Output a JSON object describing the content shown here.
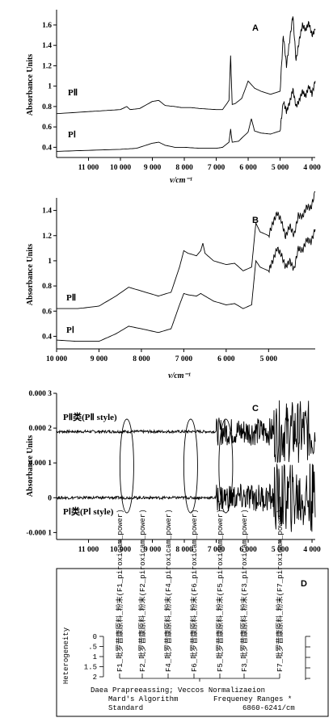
{
  "chart_data": [
    {
      "type": "line",
      "panel": "A",
      "ylabel": "Absorbance Units",
      "xlabel": "ν/cm⁻¹",
      "xlim": [
        12000,
        3900
      ],
      "ylim": [
        0.3,
        1.75
      ],
      "xticks": [
        11000,
        10000,
        9000,
        8000,
        7000,
        6000,
        5000,
        4000
      ],
      "xtick_labels": [
        "11 000",
        "10 000",
        "9 000",
        "8 000",
        "7 000",
        "6 000",
        "5 000",
        "4 000"
      ],
      "yticks": [
        0.4,
        0.6,
        0.8,
        1,
        1.2,
        1.4,
        1.6
      ],
      "ytick_labels": [
        "0.4",
        "0.6",
        "0.8",
        "1",
        "1.2",
        "1.4",
        "1.6"
      ],
      "series": [
        {
          "name": "PⅡ",
          "x": [
            12000,
            11000,
            10500,
            10000,
            9800,
            9700,
            9400,
            9000,
            8800,
            8600,
            8300,
            8100,
            7800,
            7500,
            7000,
            6800,
            6600,
            6550,
            6500,
            6400,
            6200,
            6000,
            5800,
            5600,
            5300,
            5000,
            4900,
            4800,
            4700,
            4600,
            4500,
            4400,
            4300,
            4200,
            4100,
            4000,
            3900
          ],
          "y": [
            0.73,
            0.75,
            0.76,
            0.77,
            0.8,
            0.77,
            0.78,
            0.85,
            0.86,
            0.81,
            0.8,
            0.79,
            0.79,
            0.78,
            0.77,
            0.77,
            0.86,
            1.3,
            0.82,
            0.83,
            0.88,
            1.05,
            0.98,
            0.95,
            0.92,
            0.95,
            1.5,
            1.2,
            1.45,
            1.7,
            1.25,
            1.45,
            1.6,
            1.55,
            1.62,
            1.5,
            1.55
          ]
        },
        {
          "name": "PⅠ",
          "x": [
            12000,
            11000,
            10000,
            9500,
            9000,
            8800,
            8600,
            8300,
            8000,
            7500,
            7000,
            6800,
            6600,
            6550,
            6500,
            6300,
            6000,
            5900,
            5800,
            5600,
            5300,
            5000,
            4900,
            4800,
            4700,
            4600,
            4500,
            4400,
            4300,
            4200,
            4100,
            4000,
            3900
          ],
          "y": [
            0.36,
            0.37,
            0.38,
            0.39,
            0.44,
            0.45,
            0.42,
            0.4,
            0.4,
            0.39,
            0.39,
            0.4,
            0.45,
            0.58,
            0.45,
            0.46,
            0.55,
            0.68,
            0.56,
            0.54,
            0.53,
            0.56,
            0.85,
            0.75,
            0.84,
            0.97,
            0.8,
            0.86,
            0.95,
            0.9,
            1.0,
            0.92,
            1.05
          ]
        }
      ]
    },
    {
      "type": "line",
      "panel": "B",
      "ylabel": "Absorbance Units",
      "xlabel": "ν/cm⁻¹",
      "xlim": [
        10000,
        3900
      ],
      "ylim": [
        0.3,
        1.5
      ],
      "xticks": [
        10000,
        9000,
        8000,
        7000,
        6000,
        5000
      ],
      "xtick_labels": [
        "10 000",
        "9 000",
        "8 000",
        "7 000",
        "6 000",
        "5 000"
      ],
      "yticks": [
        0.4,
        0.6,
        0.8,
        1,
        1.2,
        1.4
      ],
      "ytick_labels": [
        "0.4",
        "0.6",
        "0.8",
        "1",
        "1.2",
        "1.4"
      ],
      "series": [
        {
          "name": "PⅡ",
          "x": [
            10000,
            9500,
            9000,
            8600,
            8300,
            8000,
            7600,
            7300,
            7100,
            7000,
            6900,
            6700,
            6600,
            6550,
            6500,
            6300,
            6000,
            5800,
            5600,
            5400,
            5300,
            5200,
            5000,
            4900,
            4800,
            4700,
            4600,
            4500,
            4400,
            4300,
            4200,
            4100,
            4000,
            3900
          ],
          "y": [
            0.62,
            0.62,
            0.64,
            0.72,
            0.79,
            0.76,
            0.72,
            0.75,
            0.95,
            1.08,
            1.06,
            1.04,
            1.08,
            1.14,
            1.06,
            1.0,
            0.97,
            0.98,
            0.92,
            0.95,
            1.3,
            1.23,
            1.2,
            1.3,
            1.38,
            1.32,
            1.19,
            1.28,
            1.2,
            1.36,
            1.35,
            1.43,
            1.42,
            1.55
          ]
        },
        {
          "name": "PⅠ",
          "x": [
            10000,
            9500,
            9000,
            8600,
            8300,
            8000,
            7600,
            7300,
            7100,
            7000,
            6900,
            6700,
            6600,
            6500,
            6300,
            6000,
            5800,
            5600,
            5400,
            5300,
            5200,
            5000,
            4900,
            4800,
            4700,
            4600,
            4500,
            4400,
            4300,
            4200,
            4100,
            4000,
            3900
          ],
          "y": [
            0.37,
            0.36,
            0.36,
            0.42,
            0.48,
            0.46,
            0.43,
            0.46,
            0.65,
            0.74,
            0.73,
            0.72,
            0.74,
            0.72,
            0.68,
            0.65,
            0.66,
            0.62,
            0.65,
            1.0,
            0.95,
            0.92,
            1.0,
            1.1,
            1.05,
            0.95,
            1.0,
            0.93,
            1.1,
            1.08,
            1.17,
            1.15,
            1.25
          ]
        }
      ]
    },
    {
      "type": "line",
      "panel": "C",
      "ylabel": "Absorbance Units",
      "xlim": [
        12000,
        3900
      ],
      "ylim": [
        -0.00012,
        0.0003
      ],
      "xticks": [
        11000,
        10000,
        9000,
        8000,
        7000,
        6000,
        5000,
        4000
      ],
      "xtick_labels": [
        "11 000",
        "10 000",
        "9 000",
        "8 000",
        "7 000",
        "6 000",
        "5 000",
        "4 000"
      ],
      "yticks": [
        -0.0001,
        0,
        0.0001,
        0.0002,
        0.0003
      ],
      "ytick_labels": [
        "-0.000 1",
        "0",
        "0.000 1",
        "0.000 2",
        "0.000 3"
      ],
      "series": [
        {
          "name": "PⅡ类(PⅡ style)",
          "baseline": 0.00019,
          "noise_start": 7000,
          "noise_amp": 4e-05,
          "high_noise_start": 5200,
          "high_noise_amp": 9e-05
        },
        {
          "name": "PⅠ类(PⅠ style)",
          "baseline": 0.0,
          "noise_start": 7000,
          "noise_amp": 4e-05,
          "high_noise_start": 5200,
          "high_noise_amp": 0.0001
        }
      ],
      "ellipses_at_x": [
        9800,
        7800,
        6700
      ],
      "panel_labels": {
        "top": "PⅡ类(PⅡ style)",
        "bottom": "PⅠ类(PⅠ style)"
      }
    }
  ],
  "panel_letters": {
    "a": "A",
    "b": "B",
    "c": "C",
    "d": "D"
  },
  "panel_a": {
    "pii_label": "PⅡ",
    "pi_label": "PⅠ"
  },
  "panel_b": {
    "pii_label": "PⅡ",
    "pi_label": "PⅠ"
  },
  "panel_d": {
    "ylabel": "Heterogeneity",
    "yticks": [
      "0",
      ".5",
      "1",
      "1.5",
      "2"
    ],
    "leaves": [
      "F1_吡罗昔康原料_粉末(F1_piroxicam_power)",
      "F2_吡罗昔康原料_粉末(F2_piroxicam_power)",
      "F4_吡罗昔康原料_粉末(F4_piroxicam_power)",
      "F6_吡罗昔康原料_粉末(F6_piroxicam_power)",
      "F5_吡罗昔康原料_粉末(F5_piroxicam_power)",
      "F3_吡罗昔康原料_粉末(F3_piroxicam_power)",
      "F7_吡罗昔康原料_粉末(F7_piroxicam_power)"
    ],
    "footer": {
      "line1": "Daea Prapreeassing; Veccos Normalizaeion",
      "line2_left": "Mard's Algorithm",
      "line2_right": "Frequeney Ranges *",
      "line3_left": "Standard",
      "line3_right": "6860-6241/cm"
    }
  }
}
